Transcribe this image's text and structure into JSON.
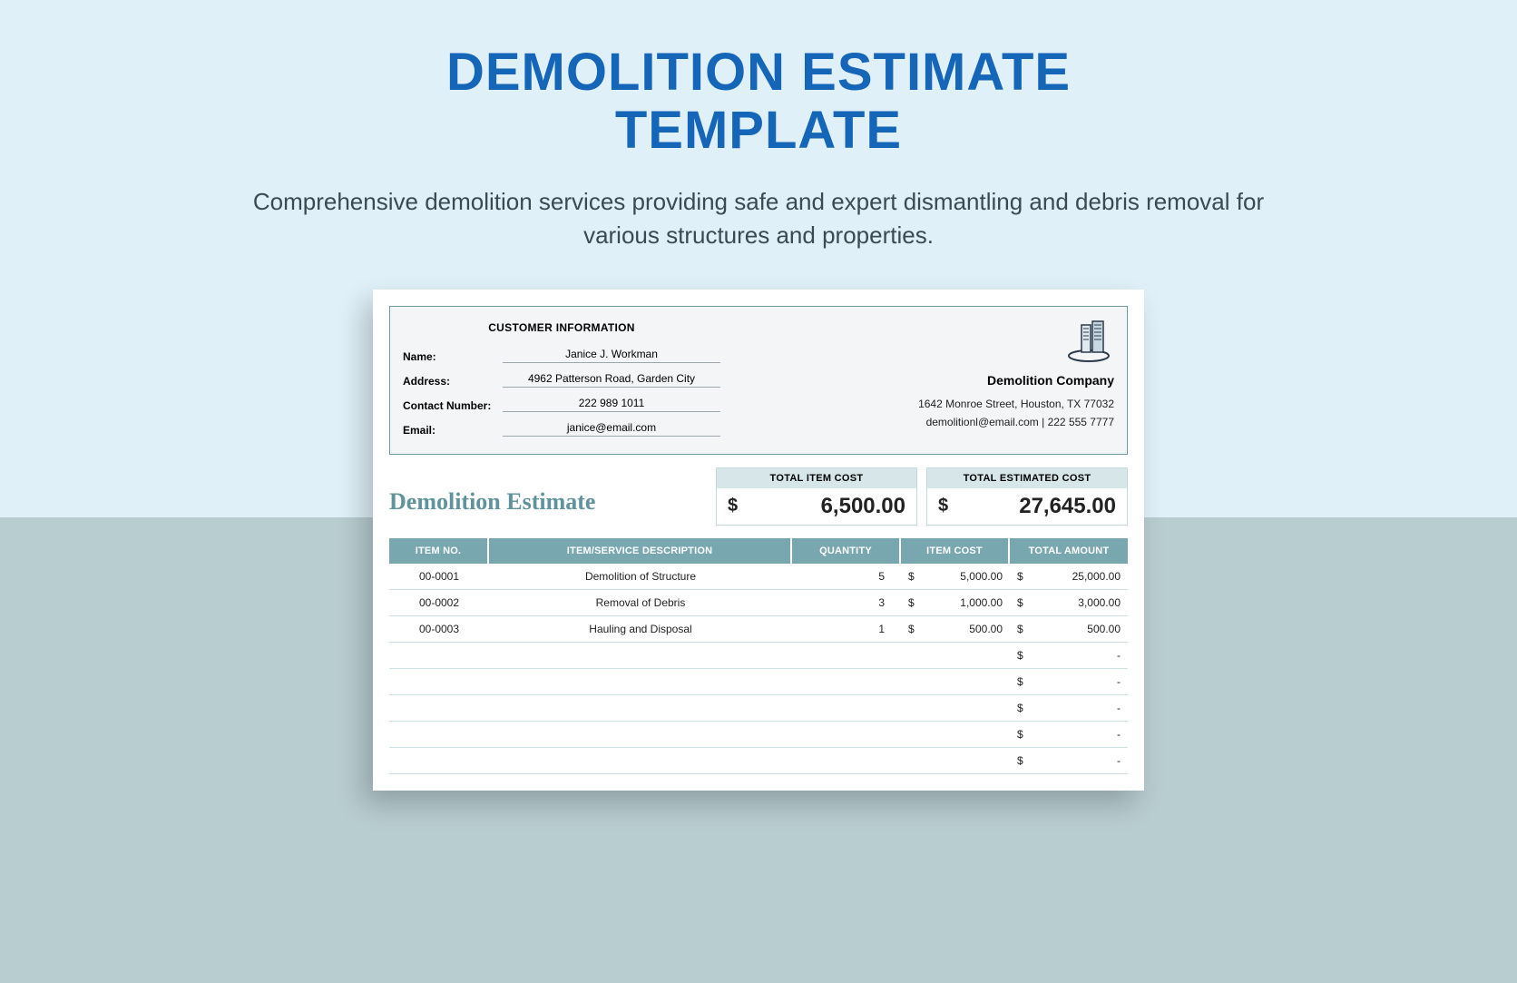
{
  "hero": {
    "title_line1": "DEMOLITION ESTIMATE",
    "title_line2": "TEMPLATE",
    "subtitle": "Comprehensive demolition services providing safe and expert dismantling and debris removal for various structures and properties."
  },
  "colors": {
    "hero_bg": "#dff0f8",
    "lower_bg": "#b8cdd0",
    "title_color": "#1565b8",
    "sub_color": "#3a4a52",
    "accent_teal": "#79a7af",
    "accent_teal_light": "#d6e6e9",
    "estimate_title_color": "#5f949d",
    "info_border": "#6b9aa2",
    "info_bg": "#f3f5f6",
    "row_border": "#cfe0e3"
  },
  "customer": {
    "section_title": "CUSTOMER INFORMATION",
    "name_label": "Name:",
    "name_value": "Janice J. Workman",
    "address_label": "Address:",
    "address_value": "4962 Patterson Road, Garden City",
    "contact_label": "Contact Number:",
    "contact_value": "222 989 1011",
    "email_label": "Email:",
    "email_value": "janice@email.com"
  },
  "company": {
    "name": "Demolition Company",
    "address": "1642 Monroe Street, Houston, TX 77032",
    "contact": "demolitionl@email.com | 222 555 7777"
  },
  "totals": {
    "estimate_title": "Demolition Estimate",
    "item_cost_label": "TOTAL ITEM COST",
    "item_cost_dollar": "$",
    "item_cost_value": "6,500.00",
    "estimated_label": "TOTAL ESTIMATED COST",
    "estimated_dollar": "$",
    "estimated_value": "27,645.00"
  },
  "table": {
    "headers": {
      "itemno": "ITEM NO.",
      "desc": "ITEM/SERVICE DESCRIPTION",
      "qty": "QUANTITY",
      "cost": "ITEM COST",
      "total": "TOTAL AMOUNT"
    },
    "dollar": "$",
    "dash": "-",
    "rows": [
      {
        "itemno": "00-0001",
        "desc": "Demolition of Structure",
        "qty": "5",
        "cost": "5,000.00",
        "total": "25,000.00"
      },
      {
        "itemno": "00-0002",
        "desc": "Removal of Debris",
        "qty": "3",
        "cost": "1,000.00",
        "total": "3,000.00"
      },
      {
        "itemno": "00-0003",
        "desc": "Hauling and Disposal",
        "qty": "1",
        "cost": "500.00",
        "total": "500.00"
      },
      {
        "itemno": "",
        "desc": "",
        "qty": "",
        "cost": "",
        "total": "-"
      },
      {
        "itemno": "",
        "desc": "",
        "qty": "",
        "cost": "",
        "total": "-"
      },
      {
        "itemno": "",
        "desc": "",
        "qty": "",
        "cost": "",
        "total": "-"
      },
      {
        "itemno": "",
        "desc": "",
        "qty": "",
        "cost": "",
        "total": "-"
      },
      {
        "itemno": "",
        "desc": "",
        "qty": "",
        "cost": "",
        "total": "-"
      }
    ]
  }
}
